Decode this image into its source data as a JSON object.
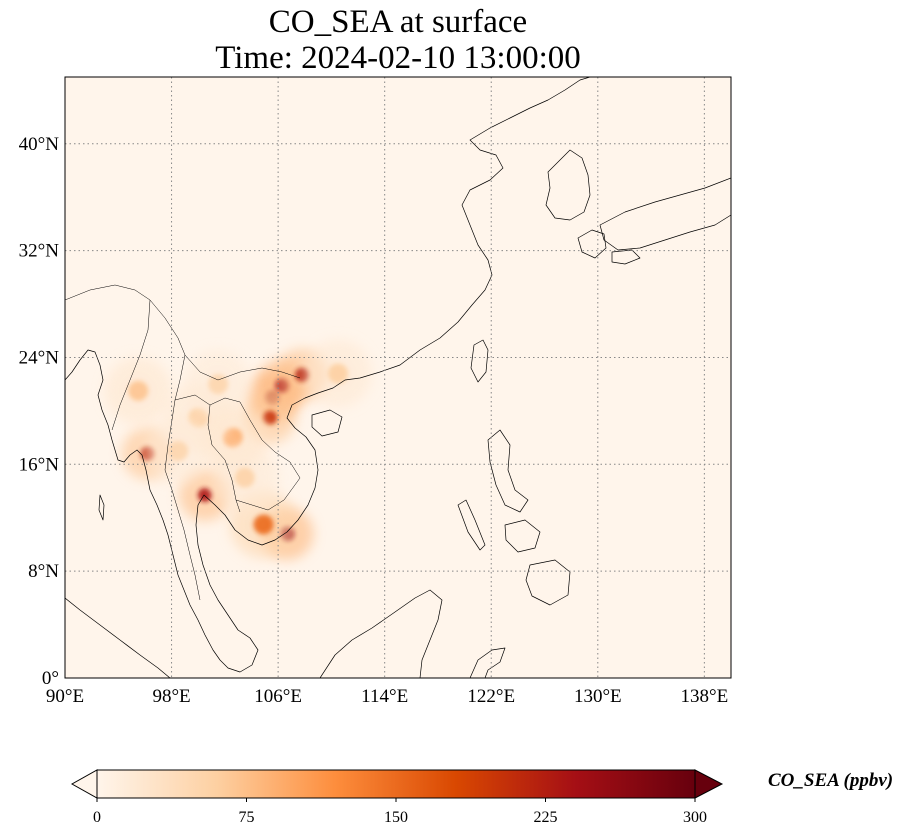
{
  "title": {
    "line1": "CO_SEA at surface",
    "line2": "Time: 2024-02-10 13:00:00"
  },
  "map": {
    "lon_range": [
      90,
      140
    ],
    "lat_range": [
      0,
      45
    ],
    "x_ticks": [
      {
        "value": 90,
        "label": "90°E"
      },
      {
        "value": 98,
        "label": "98°E"
      },
      {
        "value": 106,
        "label": "106°E"
      },
      {
        "value": 114,
        "label": "114°E"
      },
      {
        "value": 122,
        "label": "122°E"
      },
      {
        "value": 130,
        "label": "130°E"
      },
      {
        "value": 138,
        "label": "138°E"
      }
    ],
    "y_ticks": [
      {
        "value": 0,
        "label": "0°"
      },
      {
        "value": 8,
        "label": "8°N"
      },
      {
        "value": 16,
        "label": "16°N"
      },
      {
        "value": 24,
        "label": "24°N"
      },
      {
        "value": 32,
        "label": "32°N"
      },
      {
        "value": 40,
        "label": "40°N"
      }
    ],
    "grid": "dotted",
    "background_color": "#fff5eb",
    "hotspots": [
      {
        "lon": 105.6,
        "lat": 21.0,
        "level": 260
      },
      {
        "lon": 106.3,
        "lat": 21.9,
        "level": 240
      },
      {
        "lon": 105.4,
        "lat": 19.5,
        "level": 200
      },
      {
        "lon": 107.8,
        "lat": 22.7,
        "level": 220
      },
      {
        "lon": 96.2,
        "lat": 16.8,
        "level": 210
      },
      {
        "lon": 100.5,
        "lat": 13.7,
        "level": 230
      },
      {
        "lon": 106.7,
        "lat": 10.8,
        "level": 250
      },
      {
        "lon": 104.9,
        "lat": 11.5,
        "level": 150
      },
      {
        "lon": 102.6,
        "lat": 18.0,
        "level": 90
      },
      {
        "lon": 95.5,
        "lat": 21.5,
        "level": 70
      },
      {
        "lon": 100.0,
        "lat": 19.5,
        "level": 60
      },
      {
        "lon": 103.5,
        "lat": 15.0,
        "level": 55
      },
      {
        "lon": 110.5,
        "lat": 22.8,
        "level": 60
      },
      {
        "lon": 98.5,
        "lat": 17.0,
        "level": 50
      },
      {
        "lon": 101.5,
        "lat": 22.0,
        "level": 50
      }
    ]
  },
  "colorbar": {
    "label": "CO_SEA (ppbv)",
    "min": 0,
    "max": 300,
    "extend": "both",
    "ticks": [
      {
        "value": 0,
        "label": "0"
      },
      {
        "value": 75,
        "label": "75"
      },
      {
        "value": 150,
        "label": "150"
      },
      {
        "value": 225,
        "label": "225"
      },
      {
        "value": 300,
        "label": "300"
      }
    ],
    "colormap": [
      "#fff5eb",
      "#fdd0a2",
      "#fd8d3c",
      "#d94801",
      "#a50f15",
      "#67000d"
    ]
  }
}
